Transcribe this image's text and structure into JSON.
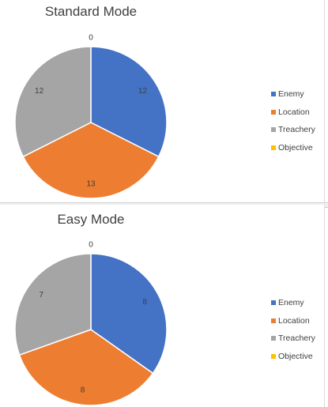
{
  "chart_data": [
    {
      "type": "pie",
      "title": "Standard Mode",
      "categories": [
        "Enemy",
        "Location",
        "Treachery",
        "Objective"
      ],
      "values": [
        12,
        13,
        12,
        0
      ],
      "colors": [
        "#4472c4",
        "#ed7d31",
        "#a5a5a5",
        "#ffc000"
      ],
      "data_labels": [
        "12",
        "13",
        "12",
        "0"
      ],
      "legend_position": "right"
    },
    {
      "type": "pie",
      "title": "Easy Mode",
      "categories": [
        "Enemy",
        "Location",
        "Treachery",
        "Objective"
      ],
      "values": [
        8,
        8,
        7,
        0
      ],
      "colors": [
        "#4472c4",
        "#ed7d31",
        "#a5a5a5",
        "#ffc000"
      ],
      "data_labels": [
        "8",
        "8",
        "7",
        "0"
      ],
      "legend_position": "right"
    }
  ]
}
